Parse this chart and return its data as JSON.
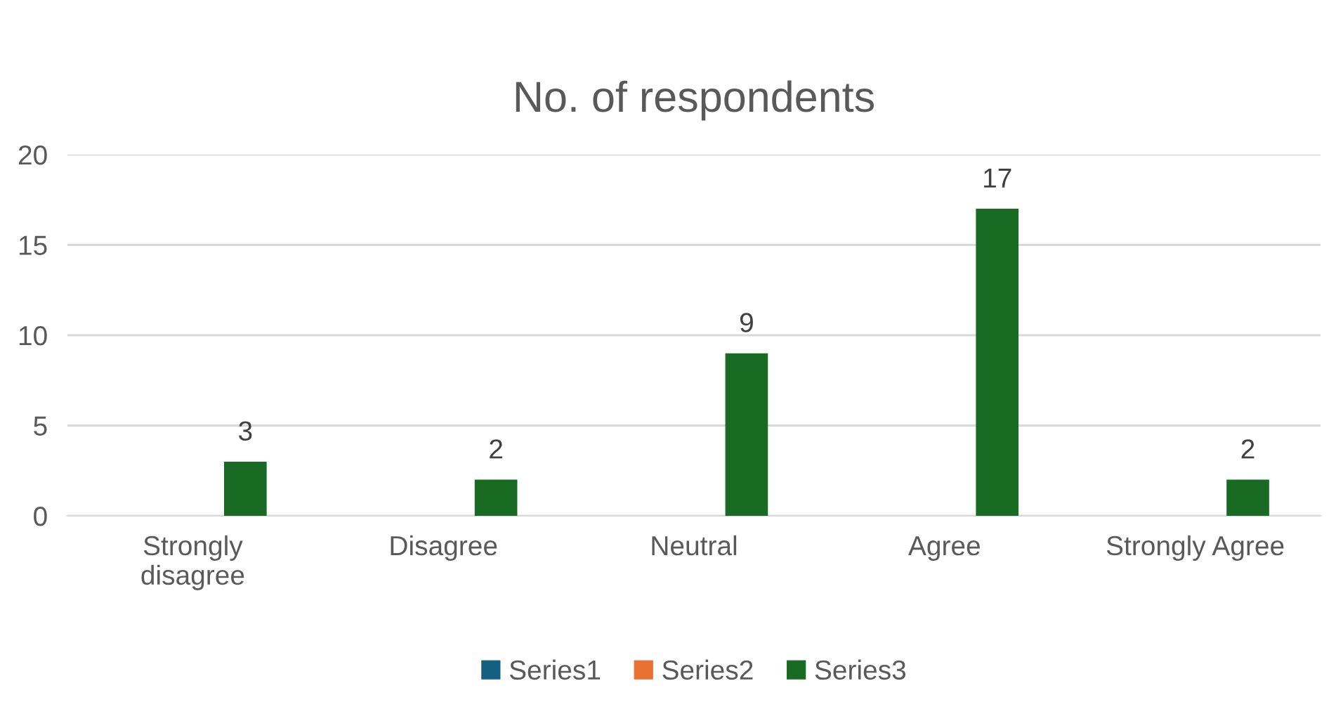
{
  "chart_data": {
    "type": "bar",
    "title": "No. of respondents",
    "categories": [
      "Strongly\ndisagree",
      "Disagree",
      "Neutral",
      "Agree",
      "Strongly Agree"
    ],
    "series": [
      {
        "name": "Series1",
        "color": "#156082",
        "values": [
          null,
          null,
          null,
          null,
          null
        ]
      },
      {
        "name": "Series2",
        "color": "#e97132",
        "values": [
          null,
          null,
          null,
          null,
          null
        ]
      },
      {
        "name": "Series3",
        "color": "#196b24",
        "values": [
          3,
          2,
          9,
          17,
          2
        ]
      }
    ],
    "ylim": [
      0,
      20
    ],
    "yticks": [
      0,
      5,
      10,
      15,
      20
    ],
    "grid": "y",
    "legend": "bottom",
    "data_labels": true
  }
}
